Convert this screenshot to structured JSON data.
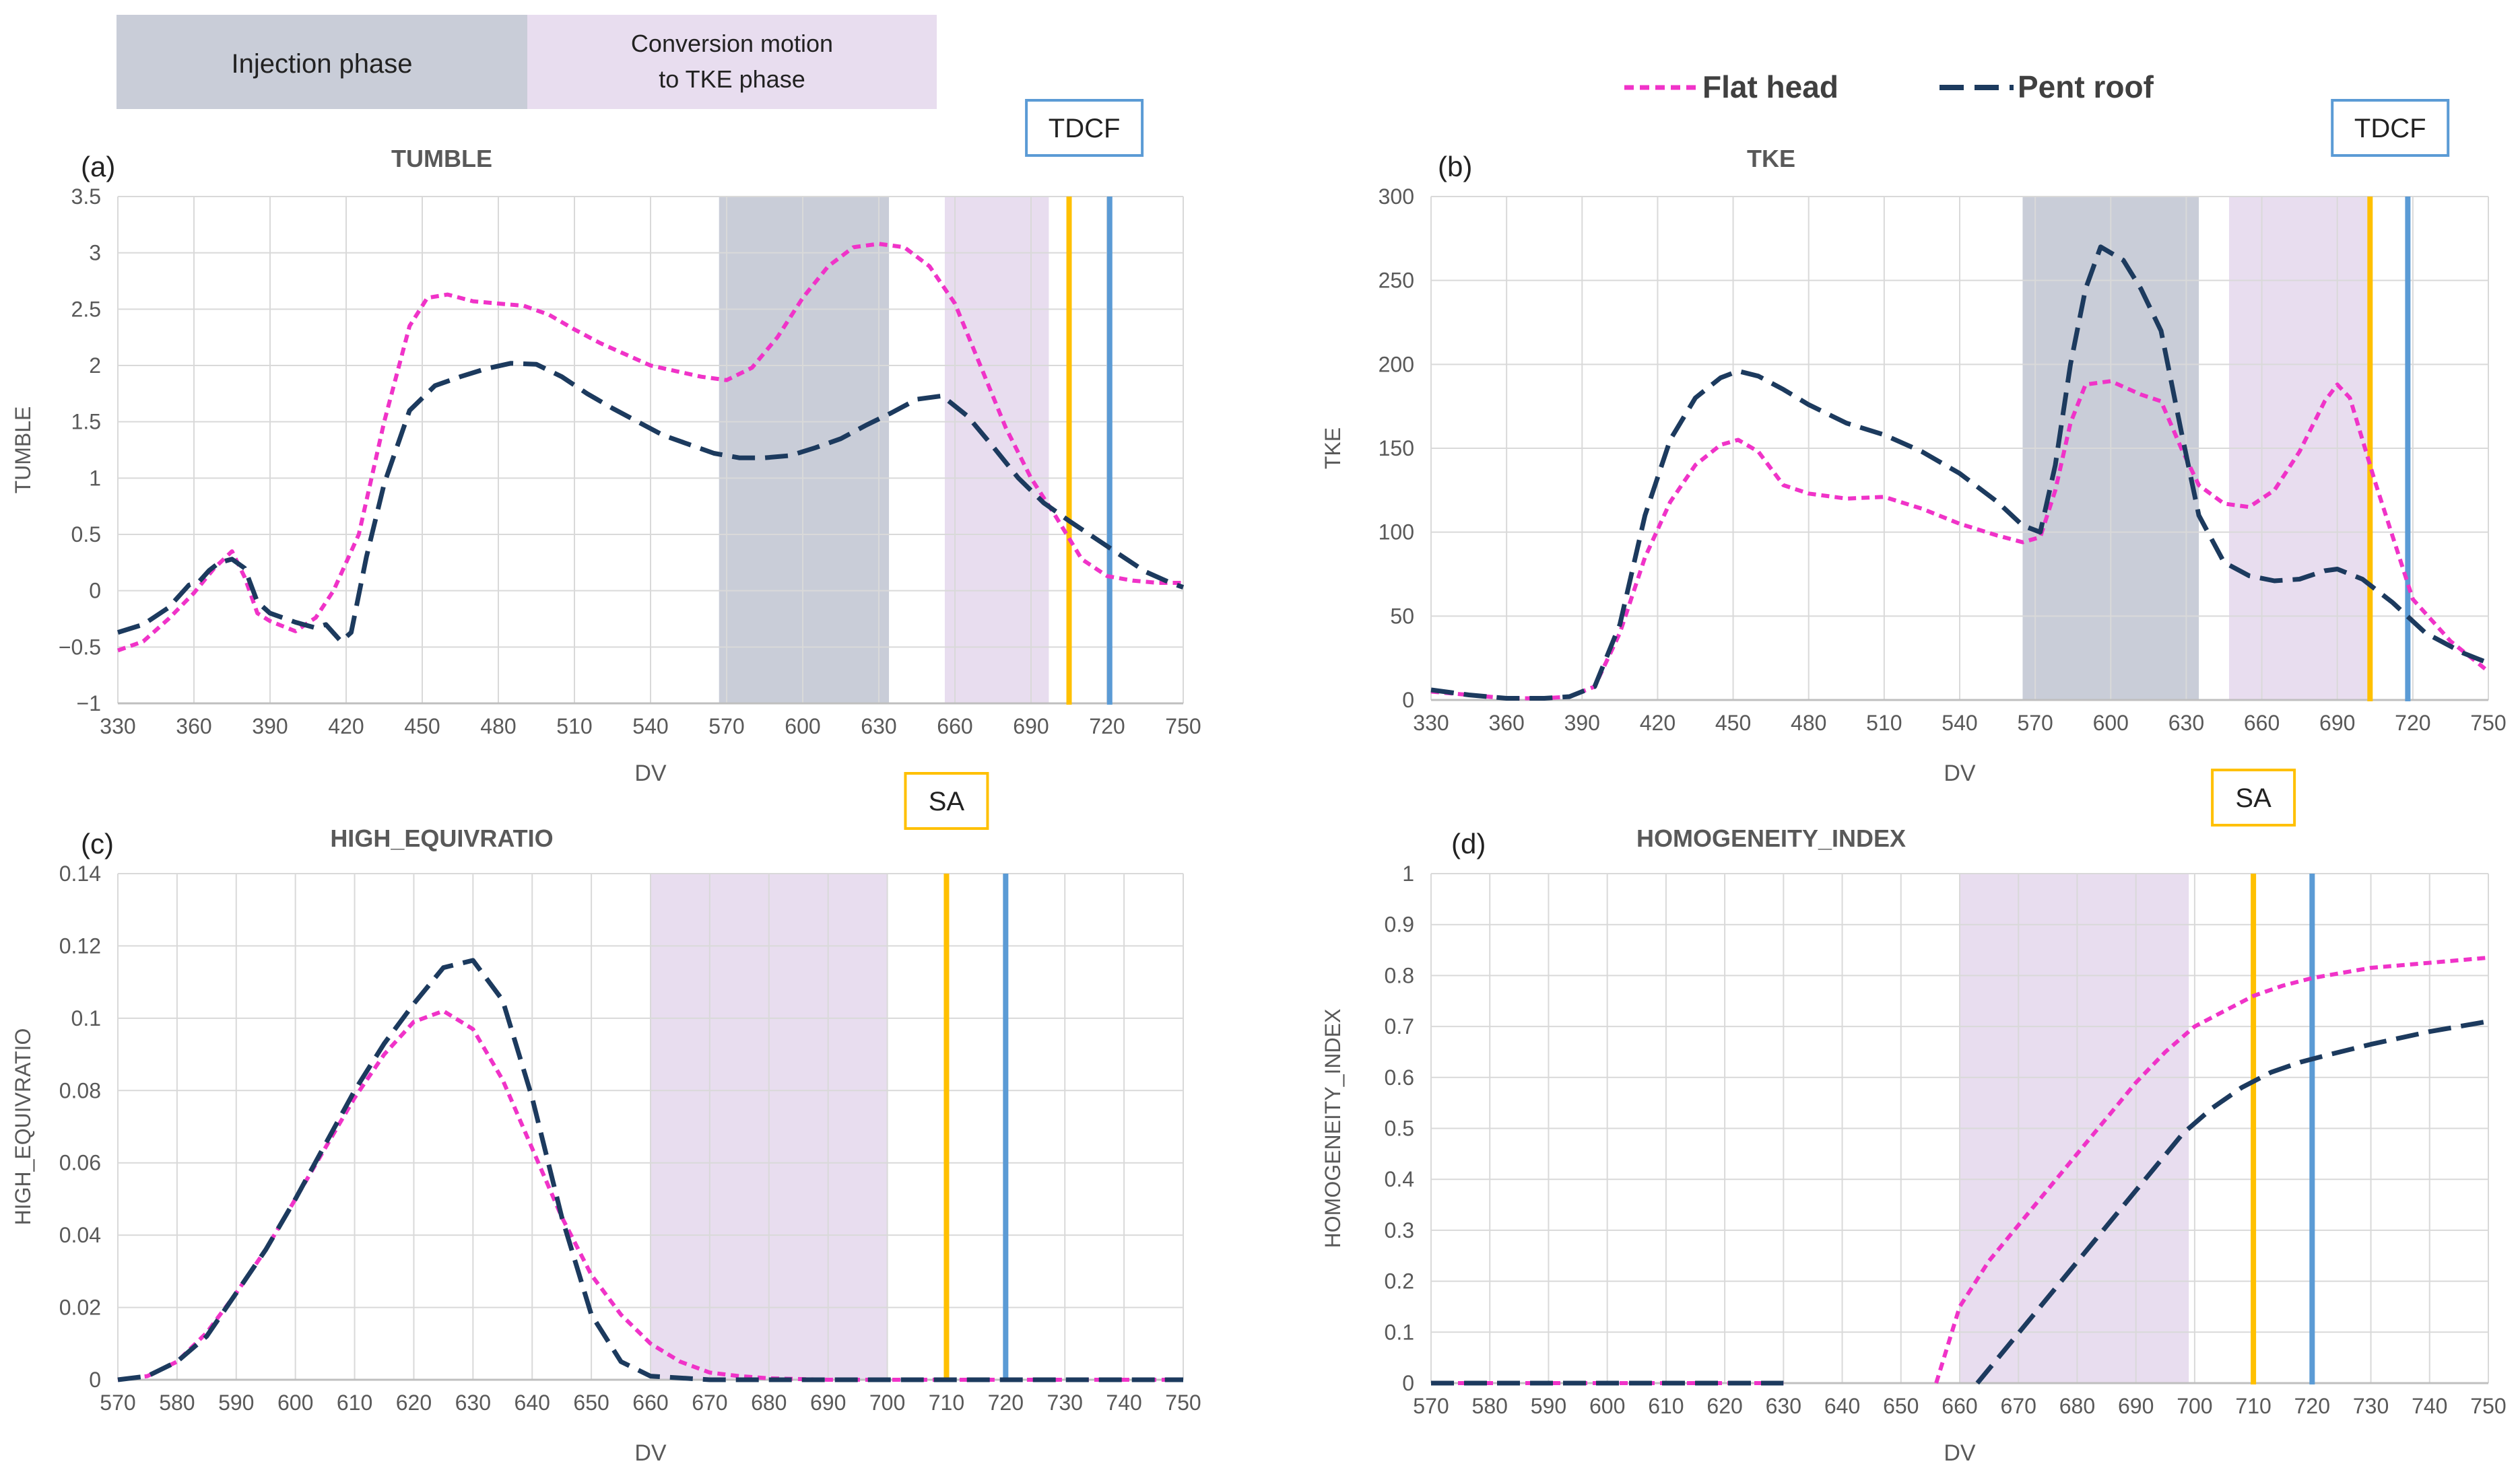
{
  "legend": {
    "phase_injection": "Injection phase",
    "phase_conversion_line1": "Conversion motion",
    "phase_conversion_line2": "to TKE phase",
    "series_flat": "Flat head",
    "series_pent": "Pent roof"
  },
  "colors": {
    "flat_head": "#f033c8",
    "pent_roof": "#1c3a5e",
    "injection_band": "#c9cdd8",
    "conversion_band": "#e8ddef",
    "orange_line": "#ffc000",
    "blue_line": "#5b9bd5",
    "grid": "#d9d9d9"
  },
  "chart_data": [
    {
      "panel": "(a)",
      "type": "line",
      "title": "TUMBLE",
      "xlabel": "DV",
      "ylabel": "TUMBLE",
      "xlim": [
        330,
        750
      ],
      "ylim": [
        -1,
        3.5
      ],
      "xticks": [
        330,
        360,
        390,
        420,
        450,
        480,
        510,
        540,
        570,
        600,
        630,
        660,
        690,
        720,
        750
      ],
      "yticks": [
        -1,
        -0.5,
        0,
        0.5,
        1,
        1.5,
        2,
        2.5,
        3,
        3.5
      ],
      "ytick_labels": [
        "−1",
        "−0.5",
        "0",
        "0.5",
        "1",
        "1.5",
        "2",
        "2.5",
        "3",
        "3.5"
      ],
      "bands": [
        {
          "from": 567,
          "to": 634,
          "kind": "injection"
        },
        {
          "from": 656,
          "to": 697,
          "kind": "conversion"
        }
      ],
      "vlines": [
        {
          "x": 705,
          "kind": "orange"
        },
        {
          "x": 721,
          "kind": "blue"
        }
      ],
      "callout": {
        "text": "TDCF",
        "x": 711,
        "kind": "blue"
      },
      "series": [
        {
          "name": "Flat head",
          "x": [
            330,
            340,
            350,
            360,
            368,
            375,
            380,
            385,
            390,
            400,
            408,
            415,
            425,
            435,
            445,
            452,
            460,
            470,
            480,
            490,
            500,
            510,
            520,
            530,
            540,
            550,
            560,
            570,
            580,
            590,
            600,
            610,
            620,
            630,
            640,
            650,
            660,
            670,
            680,
            690,
            700,
            710,
            720,
            730,
            740,
            750
          ],
          "y": [
            -0.53,
            -0.45,
            -0.25,
            -0.02,
            0.2,
            0.35,
            0.12,
            -0.2,
            -0.27,
            -0.36,
            -0.24,
            0.0,
            0.5,
            1.5,
            2.35,
            2.6,
            2.63,
            2.57,
            2.55,
            2.53,
            2.45,
            2.32,
            2.2,
            2.1,
            2.0,
            1.95,
            1.9,
            1.87,
            1.98,
            2.25,
            2.6,
            2.88,
            3.05,
            3.08,
            3.05,
            2.88,
            2.55,
            2.0,
            1.45,
            1.0,
            0.65,
            0.28,
            0.13,
            0.09,
            0.07,
            0.07
          ]
        },
        {
          "name": "Pent roof",
          "x": [
            330,
            340,
            350,
            358,
            362,
            366,
            370,
            375,
            380,
            385,
            390,
            400,
            408,
            412,
            418,
            422,
            428,
            435,
            445,
            455,
            465,
            475,
            485,
            495,
            505,
            515,
            525,
            535,
            545,
            555,
            565,
            575,
            585,
            595,
            605,
            615,
            625,
            635,
            645,
            655,
            665,
            675,
            685,
            695,
            705,
            715,
            725,
            735,
            745,
            750
          ],
          "y": [
            -0.37,
            -0.3,
            -0.15,
            0.05,
            0.08,
            0.18,
            0.25,
            0.28,
            0.2,
            -0.1,
            -0.2,
            -0.28,
            -0.33,
            -0.3,
            -0.45,
            -0.37,
            0.3,
            0.95,
            1.6,
            1.82,
            1.9,
            1.97,
            2.02,
            2.01,
            1.9,
            1.75,
            1.62,
            1.5,
            1.38,
            1.3,
            1.22,
            1.18,
            1.18,
            1.2,
            1.27,
            1.35,
            1.47,
            1.58,
            1.7,
            1.73,
            1.55,
            1.28,
            1.0,
            0.78,
            0.62,
            0.47,
            0.32,
            0.17,
            0.07,
            0.03
          ]
        }
      ]
    },
    {
      "panel": "(b)",
      "type": "line",
      "title": "TKE",
      "xlabel": "DV",
      "ylabel": "TKE",
      "xlim": [
        330,
        750
      ],
      "ylim": [
        0,
        300
      ],
      "xticks": [
        330,
        360,
        390,
        420,
        450,
        480,
        510,
        540,
        570,
        600,
        630,
        660,
        690,
        720,
        750
      ],
      "yticks": [
        0,
        50,
        100,
        150,
        200,
        250,
        300
      ],
      "ytick_labels": [
        "0",
        "50",
        "100",
        "150",
        "200",
        "250",
        "300"
      ],
      "bands": [
        {
          "from": 565,
          "to": 635,
          "kind": "injection"
        },
        {
          "from": 647,
          "to": 702,
          "kind": "conversion"
        }
      ],
      "vlines": [
        {
          "x": 703,
          "kind": "orange"
        },
        {
          "x": 718,
          "kind": "blue"
        }
      ],
      "callout": {
        "text": "TDCF",
        "x": 711,
        "kind": "blue"
      },
      "series": [
        {
          "name": "Flat head",
          "x": [
            330,
            345,
            360,
            375,
            385,
            395,
            405,
            415,
            425,
            435,
            445,
            452,
            460,
            470,
            480,
            495,
            510,
            525,
            540,
            555,
            565,
            572,
            578,
            584,
            590,
            600,
            612,
            620,
            628,
            635,
            645,
            655,
            665,
            675,
            685,
            690,
            695,
            705,
            720,
            735,
            750
          ],
          "y": [
            5,
            3,
            1,
            1,
            2,
            8,
            40,
            85,
            118,
            140,
            152,
            155,
            148,
            128,
            123,
            120,
            121,
            114,
            105,
            98,
            94,
            97,
            125,
            165,
            188,
            190,
            182,
            178,
            150,
            128,
            117,
            115,
            125,
            148,
            178,
            188,
            180,
            130,
            60,
            35,
            17
          ]
        },
        {
          "name": "Pent roof",
          "x": [
            330,
            345,
            360,
            375,
            385,
            395,
            405,
            415,
            425,
            435,
            445,
            452,
            460,
            470,
            480,
            495,
            510,
            525,
            540,
            555,
            565,
            572,
            578,
            584,
            590,
            596,
            605,
            612,
            620,
            628,
            635,
            645,
            655,
            665,
            675,
            685,
            690,
            700,
            712,
            725,
            740,
            750
          ],
          "y": [
            6,
            3,
            1,
            1,
            2,
            8,
            45,
            110,
            155,
            180,
            192,
            196,
            193,
            185,
            176,
            165,
            158,
            148,
            135,
            118,
            104,
            100,
            140,
            200,
            245,
            270,
            262,
            245,
            220,
            160,
            110,
            82,
            74,
            71,
            72,
            77,
            78,
            72,
            58,
            40,
            28,
            22
          ]
        }
      ]
    },
    {
      "panel": "(c)",
      "type": "line",
      "title": "HIGH_EQUIVRATIO",
      "xlabel": "DV",
      "ylabel": "HIGH_EQUIVRATIO",
      "xlim": [
        570,
        750
      ],
      "ylim": [
        0,
        0.14
      ],
      "xticks": [
        570,
        580,
        590,
        600,
        610,
        620,
        630,
        640,
        650,
        660,
        670,
        680,
        690,
        700,
        710,
        720,
        730,
        740,
        750
      ],
      "yticks": [
        0,
        0.02,
        0.04,
        0.06,
        0.08,
        0.1,
        0.12,
        0.14
      ],
      "ytick_labels": [
        "0",
        "0.02",
        "0.04",
        "0.06",
        "0.08",
        "0.1",
        "0.12",
        "0.14"
      ],
      "bands": [
        {
          "from": 660,
          "to": 700,
          "kind": "conversion"
        }
      ],
      "vlines": [
        {
          "x": 710,
          "kind": "orange"
        },
        {
          "x": 720,
          "kind": "blue"
        }
      ],
      "callout": {
        "text": "SA",
        "x": 710,
        "kind": "orange"
      },
      "series": [
        {
          "name": "Flat head",
          "x": [
            570,
            575,
            580,
            585,
            590,
            595,
            600,
            605,
            610,
            615,
            620,
            625,
            630,
            635,
            640,
            645,
            650,
            655,
            660,
            665,
            670,
            675,
            680,
            690,
            700,
            710,
            720,
            730,
            740,
            750
          ],
          "y": [
            0,
            0.001,
            0.005,
            0.013,
            0.024,
            0.036,
            0.05,
            0.064,
            0.078,
            0.09,
            0.099,
            0.102,
            0.097,
            0.083,
            0.064,
            0.045,
            0.029,
            0.018,
            0.01,
            0.005,
            0.002,
            0.001,
            0.0004,
            0,
            0,
            0,
            0,
            0,
            0,
            0
          ]
        },
        {
          "name": "Pent roof",
          "x": [
            570,
            575,
            580,
            585,
            590,
            595,
            600,
            605,
            610,
            615,
            620,
            625,
            630,
            635,
            640,
            645,
            650,
            655,
            660,
            670,
            680,
            690,
            700,
            710,
            720,
            730,
            740,
            750
          ],
          "y": [
            0,
            0.001,
            0.005,
            0.012,
            0.024,
            0.036,
            0.05,
            0.065,
            0.08,
            0.093,
            0.104,
            0.114,
            0.116,
            0.105,
            0.078,
            0.045,
            0.018,
            0.005,
            0.001,
            0,
            0,
            0,
            0,
            0,
            0,
            0,
            0,
            0
          ]
        }
      ]
    },
    {
      "panel": "(d)",
      "type": "line",
      "title": "HOMOGENEITY_INDEX",
      "xlabel": "DV",
      "ylabel": "HOMOGENEITY_INDEX",
      "xlim": [
        570,
        750
      ],
      "ylim": [
        0,
        1
      ],
      "xticks": [
        570,
        580,
        590,
        600,
        610,
        620,
        630,
        640,
        650,
        660,
        670,
        680,
        690,
        700,
        710,
        720,
        730,
        740,
        750
      ],
      "yticks": [
        0,
        0.1,
        0.2,
        0.3,
        0.4,
        0.5,
        0.6,
        0.7,
        0.8,
        0.9,
        1
      ],
      "ytick_labels": [
        "0",
        "0.1",
        "0.2",
        "0.3",
        "0.4",
        "0.5",
        "0.6",
        "0.7",
        "0.8",
        "0.9",
        "1"
      ],
      "bands": [
        {
          "from": 660,
          "to": 699,
          "kind": "conversion"
        }
      ],
      "vlines": [
        {
          "x": 710,
          "kind": "orange"
        },
        {
          "x": 720,
          "kind": "blue"
        }
      ],
      "callout": {
        "text": "SA",
        "x": 710,
        "kind": "orange"
      },
      "series": [
        {
          "name": "Flat head",
          "segments": [
            {
              "x": [
                570,
                630
              ],
              "y": [
                0,
                0
              ]
            },
            {
              "x": [
                656,
                660,
                665,
                670,
                675,
                680,
                685,
                690,
                695,
                700,
                705,
                710,
                715,
                720,
                725,
                730,
                740,
                750
              ],
              "y": [
                0,
                0.15,
                0.24,
                0.31,
                0.38,
                0.45,
                0.52,
                0.59,
                0.65,
                0.7,
                0.73,
                0.76,
                0.78,
                0.795,
                0.805,
                0.815,
                0.825,
                0.835
              ]
            }
          ]
        },
        {
          "name": "Pent roof",
          "segments": [
            {
              "x": [
                570,
                630
              ],
              "y": [
                0,
                0
              ]
            },
            {
              "x": [
                663,
                668,
                673,
                678,
                683,
                688,
                693,
                698,
                703,
                708,
                713,
                718,
                723,
                730,
                740,
                750
              ],
              "y": [
                0,
                0.07,
                0.14,
                0.21,
                0.28,
                0.35,
                0.42,
                0.49,
                0.54,
                0.58,
                0.61,
                0.63,
                0.645,
                0.665,
                0.69,
                0.71
              ]
            }
          ]
        }
      ]
    }
  ]
}
